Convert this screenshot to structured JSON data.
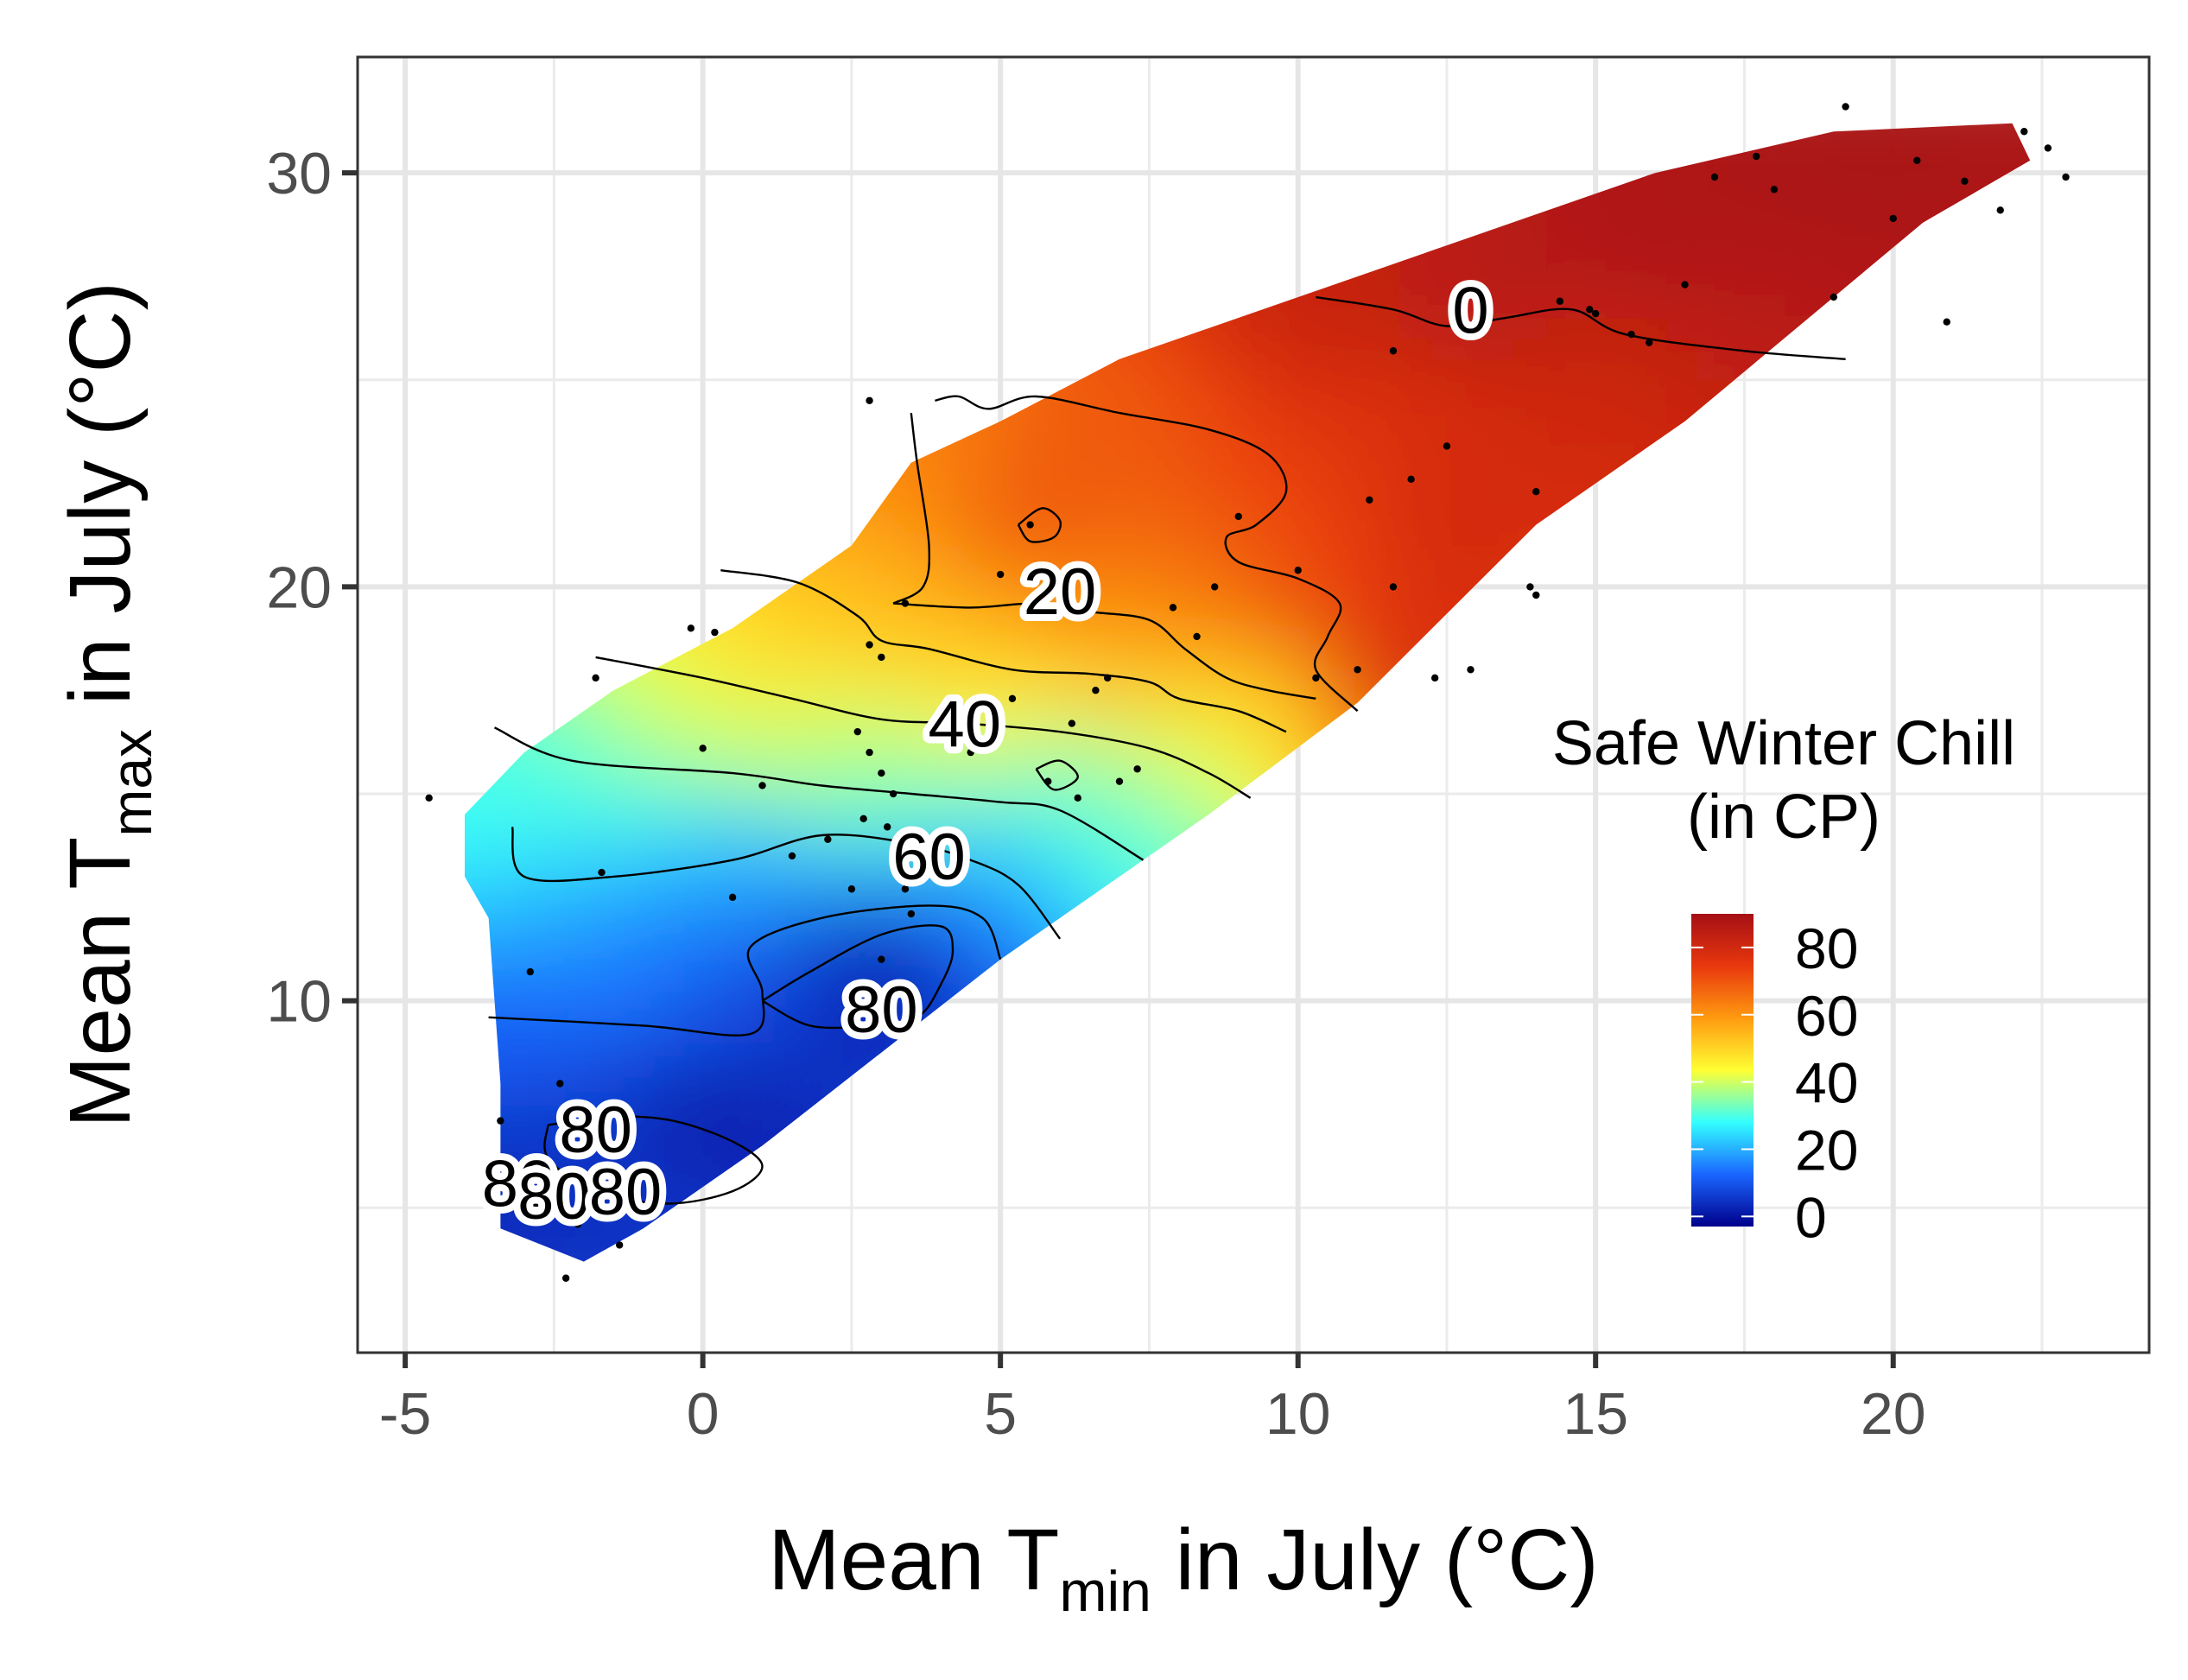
{
  "chart_data": {
    "type": "heatmap",
    "title": "",
    "xlabel": {
      "main": "Mean T",
      "sub": "min",
      "rest": " in July (°C)"
    },
    "ylabel": {
      "main": "Mean T",
      "sub": "max",
      "rest": " in July (°C)"
    },
    "xlim": [
      -5.8,
      24.3
    ],
    "ylim": [
      1.5,
      32.8
    ],
    "x_ticks": [
      -5,
      0,
      5,
      10,
      15,
      20
    ],
    "y_ticks": [
      10,
      20,
      30
    ],
    "x_tick_labels": [
      "-5",
      "0",
      "5",
      "10",
      "15",
      "20"
    ],
    "y_tick_labels": [
      "10",
      "20",
      "30"
    ],
    "grid": true,
    "legend": {
      "title_line1": "Safe Winter Chill",
      "title_line2": "(in CP)",
      "placement": "right-inside",
      "range": [
        -3,
        90
      ],
      "breaks": [
        0,
        20,
        40,
        60,
        80
      ],
      "break_labels": [
        "0",
        "20",
        "40",
        "60",
        "80"
      ],
      "colors": [
        "#a50f15",
        "#e8380d",
        "#ff9a10",
        "#ffff33",
        "#33ffff",
        "#1a66ff",
        "#00008b"
      ]
    },
    "surface_region": [
      [
        -4.0,
        14.5
      ],
      [
        -3.0,
        16.0
      ],
      [
        -1.5,
        17.5
      ],
      [
        0.5,
        19.0
      ],
      [
        2.5,
        21.0
      ],
      [
        3.5,
        23.0
      ],
      [
        5.0,
        24.0
      ],
      [
        7.0,
        25.5
      ],
      [
        10.0,
        27.0
      ],
      [
        13.0,
        28.5
      ],
      [
        16.0,
        30.0
      ],
      [
        19.0,
        31.0
      ],
      [
        22.0,
        31.2
      ],
      [
        22.3,
        30.3
      ],
      [
        20.5,
        28.8
      ],
      [
        19.0,
        27.0
      ],
      [
        16.5,
        24.0
      ],
      [
        14.0,
        21.5
      ],
      [
        11.0,
        17.2
      ],
      [
        8.5,
        14.5
      ],
      [
        5.0,
        11.0
      ],
      [
        1.0,
        6.5
      ],
      [
        -1.0,
        4.5
      ],
      [
        -2.0,
        3.7
      ],
      [
        -3.4,
        4.5
      ],
      [
        -3.4,
        8.0
      ],
      [
        -3.6,
        12.0
      ],
      [
        -4.0,
        13.0
      ]
    ],
    "field_points": [
      [
        -3.5,
        14.5,
        58
      ],
      [
        -2.5,
        12.5,
        66
      ],
      [
        -1.5,
        11.0,
        72
      ],
      [
        -3.0,
        9.0,
        76
      ],
      [
        -2.0,
        6.5,
        82
      ],
      [
        -1.0,
        5.0,
        82
      ],
      [
        0.0,
        7.0,
        86
      ],
      [
        -3.0,
        5.5,
        84
      ],
      [
        -2.0,
        15.5,
        56
      ],
      [
        -0.5,
        17.0,
        47
      ],
      [
        1.0,
        18.5,
        38
      ],
      [
        2.5,
        20.0,
        33
      ],
      [
        3.5,
        22.5,
        25
      ],
      [
        2.0,
        16.0,
        48
      ],
      [
        3.0,
        15.0,
        54
      ],
      [
        1.0,
        13.0,
        68
      ],
      [
        3.0,
        11.0,
        88
      ],
      [
        2.5,
        10.0,
        84
      ],
      [
        1.0,
        10.5,
        78
      ],
      [
        4.0,
        12.0,
        74
      ],
      [
        5.0,
        13.0,
        66
      ],
      [
        6.0,
        15.5,
        54
      ],
      [
        7.0,
        14.0,
        56
      ],
      [
        5.0,
        17.0,
        42
      ],
      [
        4.5,
        19.0,
        33
      ],
      [
        5.5,
        21.5,
        16
      ],
      [
        6.0,
        20.0,
        24
      ],
      [
        7.0,
        23.5,
        18
      ],
      [
        7.0,
        18.0,
        32
      ],
      [
        8.5,
        20.0,
        22
      ],
      [
        8.0,
        16.0,
        46
      ],
      [
        9.5,
        17.5,
        36
      ],
      [
        9.5,
        22.5,
        14
      ],
      [
        10.0,
        19.5,
        14
      ],
      [
        11.5,
        24.0,
        10
      ],
      [
        10.5,
        26.5,
        5
      ],
      [
        11.5,
        18.0,
        8
      ],
      [
        13.0,
        21.0,
        7
      ],
      [
        13.0,
        27.0,
        1
      ],
      [
        15.0,
        25.0,
        6
      ],
      [
        14.0,
        20.0,
        10
      ],
      [
        16.0,
        28.5,
        -1
      ],
      [
        18.0,
        26.0,
        2
      ],
      [
        19.5,
        30.0,
        -2
      ],
      [
        21.0,
        30.8,
        -2
      ],
      [
        19.0,
        27.0,
        0
      ],
      [
        17.0,
        24.0,
        5
      ],
      [
        12.5,
        23.5,
        8
      ],
      [
        21.5,
        29.0,
        -1
      ],
      [
        16.0,
        22.0,
        8
      ]
    ],
    "contours": [
      {
        "level": 0,
        "label": "0",
        "label_at": [
          12.9,
          26.7
        ],
        "path": [
          [
            10.3,
            27.0
          ],
          [
            11.6,
            26.7
          ],
          [
            12.5,
            26.3
          ],
          [
            13.5,
            26.5
          ],
          [
            14.6,
            26.7
          ],
          [
            15.5,
            26.1
          ],
          [
            17.5,
            25.7
          ],
          [
            19.2,
            25.5
          ]
        ]
      },
      {
        "level": 20,
        "label": "20",
        "label_at": [
          6.0,
          19.9
        ],
        "path": [
          [
            3.9,
            24.5
          ],
          [
            4.3,
            24.6
          ],
          [
            4.8,
            24.3
          ],
          [
            5.6,
            24.6
          ],
          [
            7.0,
            24.2
          ],
          [
            8.5,
            23.8
          ],
          [
            9.5,
            23.2
          ],
          [
            9.8,
            22.3
          ],
          [
            9.3,
            21.5
          ],
          [
            8.8,
            21.2
          ],
          [
            9.0,
            20.6
          ],
          [
            10.0,
            20.2
          ],
          [
            10.7,
            19.6
          ],
          [
            10.5,
            18.8
          ],
          [
            10.3,
            18.0
          ],
          [
            11.0,
            17.0
          ]
        ]
      },
      {
        "level": 20,
        "label": "",
        "label_at": null,
        "path": [
          [
            3.2,
            19.6
          ],
          [
            4.5,
            19.5
          ],
          [
            5.6,
            19.6
          ],
          [
            6.5,
            19.4
          ],
          [
            7.5,
            19.2
          ],
          [
            8.1,
            18.5
          ],
          [
            8.8,
            17.8
          ],
          [
            9.5,
            17.5
          ],
          [
            10.3,
            17.3
          ]
        ]
      },
      {
        "level": 20,
        "label": "",
        "label_at": null,
        "path": [
          [
            3.5,
            24.2
          ],
          [
            3.6,
            23.0
          ],
          [
            3.8,
            21.0
          ],
          [
            3.7,
            20.0
          ],
          [
            3.2,
            19.6
          ]
        ]
      },
      {
        "level": 20,
        "label": "",
        "label_at": null,
        "path": [
          [
            5.3,
            21.5
          ],
          [
            5.7,
            21.9
          ],
          [
            6.0,
            21.6
          ],
          [
            5.9,
            21.2
          ],
          [
            5.5,
            21.1
          ],
          [
            5.3,
            21.5
          ]
        ]
      },
      {
        "level": 40,
        "label": "",
        "label_at": null,
        "path": [
          [
            0.3,
            20.4
          ],
          [
            1.6,
            20.1
          ],
          [
            2.6,
            19.3
          ],
          [
            3.0,
            18.7
          ],
          [
            3.8,
            18.5
          ],
          [
            5.2,
            18.0
          ],
          [
            6.5,
            17.9
          ],
          [
            7.5,
            17.7
          ],
          [
            8.0,
            17.3
          ],
          [
            9.0,
            17.0
          ],
          [
            9.8,
            16.5
          ]
        ]
      },
      {
        "level": 40,
        "label": "40",
        "label_at": [
          4.4,
          16.7
        ],
        "path": [
          [
            -1.8,
            18.3
          ],
          [
            0.0,
            17.8
          ],
          [
            1.5,
            17.3
          ],
          [
            3.0,
            16.8
          ],
          [
            4.4,
            16.7
          ],
          [
            6.0,
            16.5
          ],
          [
            7.5,
            16.1
          ],
          [
            8.5,
            15.5
          ],
          [
            9.2,
            14.9
          ]
        ]
      },
      {
        "level": 60,
        "label": "",
        "label_at": null,
        "path": [
          [
            -3.5,
            16.6
          ],
          [
            -2.2,
            15.8
          ],
          [
            0.5,
            15.5
          ],
          [
            2.0,
            15.2
          ],
          [
            3.5,
            15.0
          ],
          [
            5.0,
            14.8
          ],
          [
            6.0,
            14.6
          ],
          [
            7.4,
            13.4
          ]
        ]
      },
      {
        "level": 60,
        "label": "",
        "label_at": null,
        "path": [
          [
            5.6,
            15.6
          ],
          [
            6.0,
            15.8
          ],
          [
            6.3,
            15.4
          ],
          [
            5.9,
            15.1
          ],
          [
            5.6,
            15.6
          ]
        ]
      },
      {
        "level": 60,
        "label": "60",
        "label_at": [
          3.8,
          13.5
        ],
        "path": [
          [
            -3.2,
            14.2
          ],
          [
            -3.0,
            13.0
          ],
          [
            -1.5,
            13.0
          ],
          [
            0.5,
            13.4
          ],
          [
            2.0,
            14.0
          ],
          [
            3.5,
            13.8
          ],
          [
            4.5,
            13.4
          ],
          [
            5.3,
            12.8
          ],
          [
            6.0,
            11.5
          ]
        ]
      },
      {
        "level": 80,
        "label": "80",
        "label_at": [
          3.0,
          9.8
        ],
        "path": [
          [
            1.0,
            10.0
          ],
          [
            1.8,
            10.7
          ],
          [
            3.0,
            11.6
          ],
          [
            4.0,
            11.8
          ],
          [
            4.2,
            11.2
          ],
          [
            4.0,
            10.4
          ],
          [
            3.6,
            9.6
          ],
          [
            2.8,
            9.4
          ],
          [
            1.8,
            9.4
          ],
          [
            1.0,
            10.0
          ]
        ]
      },
      {
        "level": 80,
        "label": "80",
        "label_at": [
          -1.8,
          6.9
        ],
        "path": [
          [
            -2.6,
            7.0
          ],
          [
            -1.5,
            7.2
          ],
          [
            -0.5,
            7.1
          ],
          [
            0.5,
            6.6
          ],
          [
            1.0,
            6.0
          ],
          [
            0.5,
            5.4
          ],
          [
            -0.6,
            5.1
          ],
          [
            -1.8,
            5.4
          ],
          [
            -2.6,
            6.2
          ],
          [
            -2.6,
            7.0
          ]
        ]
      },
      {
        "level": 80,
        "label": "",
        "label_at": null,
        "path": [
          [
            -3.6,
            9.6
          ],
          [
            -1.0,
            9.4
          ],
          [
            0.8,
            9.2
          ],
          [
            1.0,
            10.2
          ],
          [
            0.8,
            11.3
          ],
          [
            2.0,
            12.0
          ],
          [
            3.8,
            12.3
          ],
          [
            4.7,
            12.0
          ],
          [
            5.0,
            11.0
          ]
        ]
      }
    ],
    "extra_labels": [
      {
        "label": "80",
        "at": [
          -3.1,
          5.6
        ]
      },
      {
        "label": "80",
        "at": [
          -2.5,
          5.3
        ]
      },
      {
        "label": "80",
        "at": [
          -1.3,
          5.4
        ]
      }
    ],
    "stations": [
      [
        -4.6,
        14.9
      ],
      [
        -2.9,
        10.7
      ],
      [
        -2.4,
        8.0
      ],
      [
        -1.5,
        6.5
      ],
      [
        -3.4,
        7.1
      ],
      [
        -2.1,
        4.6
      ],
      [
        -1.4,
        4.1
      ],
      [
        -2.3,
        3.3
      ],
      [
        -1.8,
        17.8
      ],
      [
        -1.7,
        13.1
      ],
      [
        0.2,
        18.9
      ],
      [
        0.0,
        16.1
      ],
      [
        -0.2,
        19.0
      ],
      [
        0.5,
        12.5
      ],
      [
        1.0,
        15.2
      ],
      [
        1.5,
        13.5
      ],
      [
        2.1,
        13.9
      ],
      [
        2.5,
        12.7
      ],
      [
        2.7,
        14.4
      ],
      [
        2.8,
        18.6
      ],
      [
        3.0,
        18.3
      ],
      [
        3.4,
        19.6
      ],
      [
        3.2,
        15.0
      ],
      [
        2.6,
        16.5
      ],
      [
        2.8,
        16.0
      ],
      [
        3.0,
        15.5
      ],
      [
        3.1,
        14.2
      ],
      [
        3.4,
        12.7
      ],
      [
        3.5,
        12.1
      ],
      [
        3.0,
        11.0
      ],
      [
        2.8,
        24.5
      ],
      [
        4.5,
        16.0
      ],
      [
        5.0,
        20.3
      ],
      [
        5.2,
        17.3
      ],
      [
        5.8,
        15.3
      ],
      [
        6.2,
        16.7
      ],
      [
        6.6,
        17.5
      ],
      [
        7.0,
        15.3
      ],
      [
        7.3,
        15.6
      ],
      [
        6.3,
        14.9
      ],
      [
        6.8,
        17.8
      ],
      [
        5.5,
        21.5
      ],
      [
        7.9,
        19.5
      ],
      [
        8.3,
        18.8
      ],
      [
        8.6,
        20.0
      ],
      [
        9.0,
        21.7
      ],
      [
        10.0,
        20.4
      ],
      [
        10.3,
        17.8
      ],
      [
        11.2,
        22.1
      ],
      [
        11.0,
        18.0
      ],
      [
        11.6,
        20.0
      ],
      [
        11.9,
        22.6
      ],
      [
        12.3,
        17.8
      ],
      [
        12.9,
        18.0
      ],
      [
        12.5,
        23.4
      ],
      [
        14.0,
        22.3
      ],
      [
        13.9,
        20.0
      ],
      [
        14.4,
        26.9
      ],
      [
        14.9,
        26.7
      ],
      [
        15.6,
        26.1
      ],
      [
        15.9,
        25.9
      ],
      [
        16.5,
        27.3
      ],
      [
        17.0,
        29.9
      ],
      [
        17.7,
        30.4
      ],
      [
        18.0,
        29.6
      ],
      [
        19.2,
        31.6
      ],
      [
        20.0,
        28.9
      ],
      [
        20.4,
        30.3
      ],
      [
        21.2,
        29.8
      ],
      [
        21.8,
        29.1
      ],
      [
        22.2,
        31.0
      ],
      [
        22.6,
        30.6
      ],
      [
        22.9,
        29.9
      ],
      [
        20.9,
        26.4
      ],
      [
        15.0,
        26.6
      ],
      [
        14.0,
        19.8
      ],
      [
        11.6,
        25.7
      ],
      [
        19.0,
        27.0
      ]
    ]
  }
}
